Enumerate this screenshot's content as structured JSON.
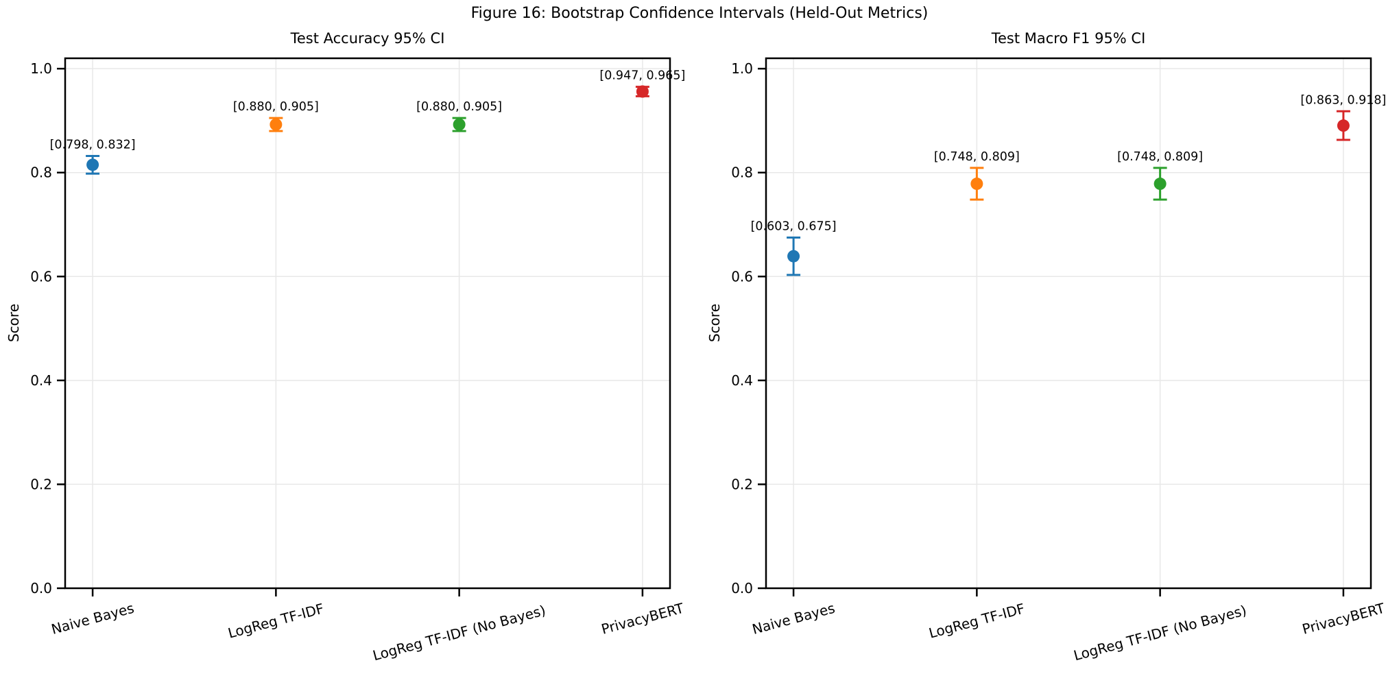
{
  "figure": {
    "suptitle": "Figure 16: Bootstrap Confidence Intervals (Held-Out Metrics)"
  },
  "styles": {
    "background": "#ffffff",
    "grid_color": "#e8e8e8",
    "spine_color": "#000000",
    "text_color": "#000000",
    "series_palette": [
      "#1f77b4",
      "#ff7f0e",
      "#2ca02c",
      "#d62728"
    ]
  },
  "chart_data": [
    {
      "type": "scatter",
      "title": "Test Accuracy 95% CI",
      "ylabel": "Score",
      "ylim": [
        0.0,
        1.02
      ],
      "yticks": [
        0.0,
        0.2,
        0.4,
        0.6,
        0.8,
        1.0
      ],
      "grid": true,
      "legend": "none",
      "categories": [
        "Naive Bayes",
        "LogReg TF-IDF",
        "LogReg TF-IDF (No Bayes)",
        "PrivacyBERT"
      ],
      "series": [
        {
          "name": "Naive Bayes",
          "mean": 0.815,
          "ci_low": 0.798,
          "ci_high": 0.832,
          "ci_label": "[0.798, 0.832]",
          "color": "#1f77b4"
        },
        {
          "name": "LogReg TF-IDF",
          "mean": 0.8925,
          "ci_low": 0.88,
          "ci_high": 0.905,
          "ci_label": "[0.880, 0.905]",
          "color": "#ff7f0e"
        },
        {
          "name": "LogReg TF-IDF (No Bayes)",
          "mean": 0.8925,
          "ci_low": 0.88,
          "ci_high": 0.905,
          "ci_label": "[0.880, 0.905]",
          "color": "#2ca02c"
        },
        {
          "name": "PrivacyBERT",
          "mean": 0.956,
          "ci_low": 0.947,
          "ci_high": 0.965,
          "ci_label": "[0.947, 0.965]",
          "color": "#d62728"
        }
      ]
    },
    {
      "type": "scatter",
      "title": "Test Macro F1 95% CI",
      "ylabel": "Score",
      "ylim": [
        0.0,
        1.02
      ],
      "yticks": [
        0.0,
        0.2,
        0.4,
        0.6,
        0.8,
        1.0
      ],
      "grid": true,
      "legend": "none",
      "categories": [
        "Naive Bayes",
        "LogReg TF-IDF",
        "LogReg TF-IDF (No Bayes)",
        "PrivacyBERT"
      ],
      "series": [
        {
          "name": "Naive Bayes",
          "mean": 0.639,
          "ci_low": 0.603,
          "ci_high": 0.675,
          "ci_label": "[0.603, 0.675]",
          "color": "#1f77b4"
        },
        {
          "name": "LogReg TF-IDF",
          "mean": 0.7785,
          "ci_low": 0.748,
          "ci_high": 0.809,
          "ci_label": "[0.748, 0.809]",
          "color": "#ff7f0e"
        },
        {
          "name": "LogReg TF-IDF (No Bayes)",
          "mean": 0.7785,
          "ci_low": 0.748,
          "ci_high": 0.809,
          "ci_label": "[0.748, 0.809]",
          "color": "#2ca02c"
        },
        {
          "name": "PrivacyBERT",
          "mean": 0.8905,
          "ci_low": 0.863,
          "ci_high": 0.918,
          "ci_label": "[0.863, 0.918]",
          "color": "#d62728"
        }
      ]
    }
  ]
}
